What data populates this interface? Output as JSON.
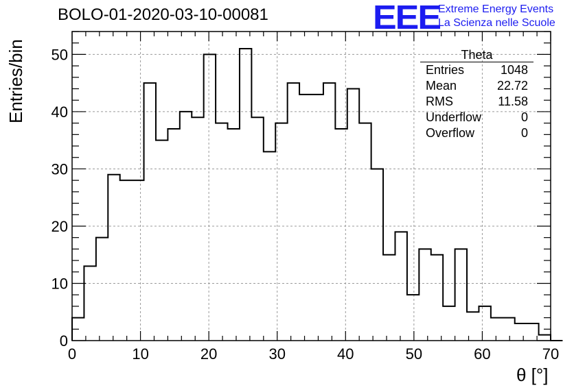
{
  "title": "BOLO-01-2020-03-10-00081",
  "logo": {
    "mark": "EEE",
    "line1": "Extreme Energy Events",
    "line2": "La Scienza nelle Scuole",
    "color": "#1c1cf0"
  },
  "stats": {
    "name": "Theta",
    "rows": [
      {
        "label": "Entries",
        "value": "1048"
      },
      {
        "label": "Mean",
        "value": "22.72"
      },
      {
        "label": "RMS",
        "value": "11.58"
      },
      {
        "label": "Underflow",
        "value": "0"
      },
      {
        "label": "Overflow",
        "value": "0"
      }
    ]
  },
  "chart_data": {
    "type": "bar",
    "xlabel": "θ [°]",
    "ylabel": "Entries/bin",
    "xlim": [
      0,
      70
    ],
    "ylim": [
      0,
      54
    ],
    "bin_width": 1.75,
    "xticks": [
      "0",
      "10",
      "20",
      "30",
      "40",
      "50",
      "60",
      "70"
    ],
    "yticks": [
      "0",
      "10",
      "20",
      "30",
      "40",
      "50"
    ],
    "grid": true,
    "values": [
      4,
      13,
      18,
      29,
      28,
      28,
      45,
      35,
      37,
      40,
      39,
      50,
      38,
      37,
      51,
      39,
      33,
      38,
      45,
      43,
      43,
      45,
      37,
      44,
      38,
      30,
      15,
      19,
      8,
      16,
      15,
      6,
      16,
      5,
      6,
      4,
      4,
      3,
      3,
      1,
      0
    ]
  }
}
